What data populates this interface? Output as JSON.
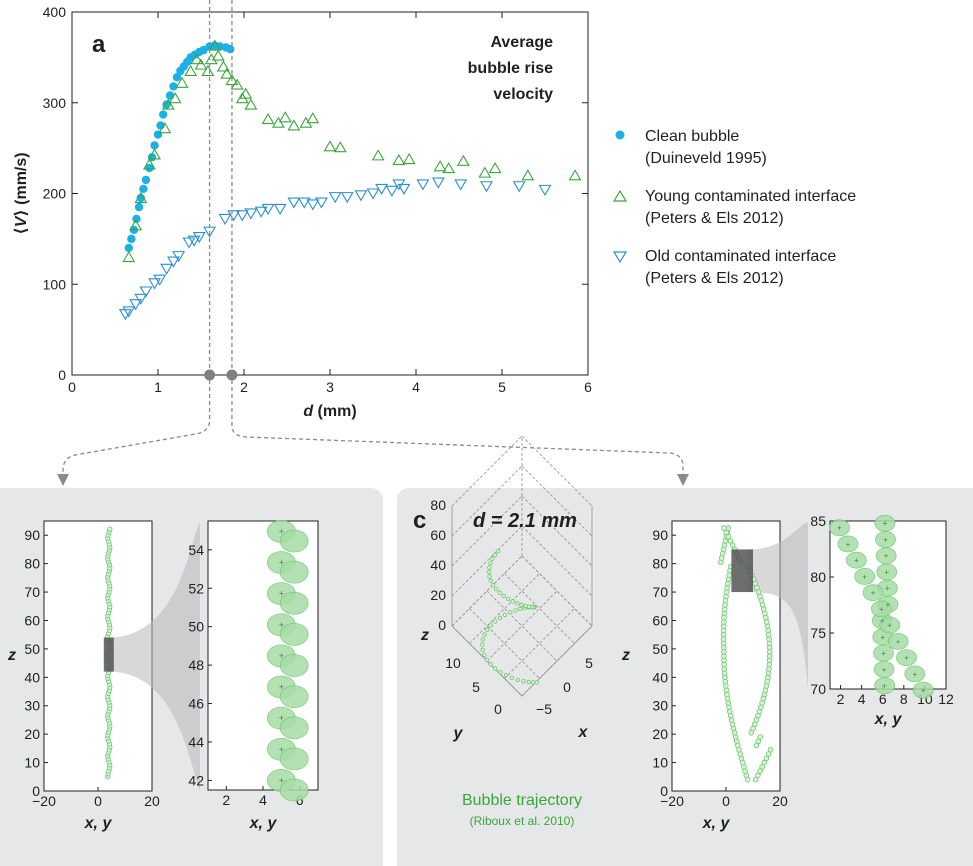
{
  "panels": {
    "a": "a",
    "c": "c"
  },
  "annotation": {
    "line1": "Average",
    "line2": "bubble rise",
    "line3": "velocity"
  },
  "legend": [
    {
      "line1": "Clean bubble",
      "line2": "(Duineveld 1995)"
    },
    {
      "line1": "Young contaminated interface",
      "line2": "(Peters & Els 2012)"
    },
    {
      "line1": "Old contaminated interface",
      "line2": "(Peters & Els 2012)"
    }
  ],
  "colors": {
    "clean": "#1ab0e8",
    "young": "#3aa63a",
    "old": "#2a8fd0",
    "bubble": "#6cc86c",
    "panel_bg": "#e6e7e8"
  },
  "chart_data": [
    {
      "type": "scatter",
      "title": "",
      "xlabel": "d (mm)",
      "ylabel": "⟨V⟩ (mm/s)",
      "xlim": [
        0,
        6
      ],
      "ylim": [
        0,
        400
      ],
      "xticks": [
        "0",
        "1",
        "2",
        "3",
        "4",
        "5",
        "6"
      ],
      "yticks": [
        "0",
        "100",
        "200",
        "300",
        "400"
      ],
      "marked_d": [
        1.6,
        1.86
      ],
      "series": [
        {
          "name": "Clean bubble (Duineveld 1995)",
          "marker": "circle",
          "x": [
            0.66,
            0.69,
            0.72,
            0.75,
            0.78,
            0.8,
            0.83,
            0.86,
            0.9,
            0.93,
            0.96,
            1.0,
            1.03,
            1.06,
            1.1,
            1.14,
            1.18,
            1.22,
            1.26,
            1.3,
            1.34,
            1.38,
            1.43,
            1.48,
            1.53,
            1.6,
            1.66,
            1.72,
            1.79,
            1.84
          ],
          "y": [
            140,
            150,
            160,
            172,
            185,
            195,
            205,
            215,
            228,
            240,
            253,
            265,
            275,
            287,
            298,
            308,
            318,
            328,
            335,
            340,
            345,
            350,
            353,
            356,
            358,
            362,
            363,
            362,
            361,
            359
          ]
        },
        {
          "name": "Young contaminated interface (Peters & Els 2012)",
          "marker": "triangle-up",
          "x": [
            0.66,
            0.74,
            0.8,
            0.9,
            0.96,
            1.08,
            1.12,
            1.2,
            1.28,
            1.38,
            1.45,
            1.5,
            1.58,
            1.62,
            1.66,
            1.7,
            1.76,
            1.8,
            1.86,
            1.92,
            1.98,
            2.02,
            2.08,
            2.28,
            2.4,
            2.48,
            2.58,
            2.72,
            2.8,
            3.0,
            3.12,
            3.56,
            3.8,
            3.92,
            4.28,
            4.38,
            4.55,
            4.8,
            4.92,
            5.3,
            5.85
          ],
          "y": [
            130,
            165,
            195,
            232,
            243,
            272,
            298,
            305,
            322,
            335,
            348,
            342,
            335,
            348,
            363,
            352,
            340,
            332,
            325,
            320,
            305,
            310,
            298,
            282,
            278,
            284,
            275,
            278,
            283,
            252,
            251,
            242,
            237,
            238,
            230,
            228,
            236,
            223,
            228,
            220,
            220
          ]
        },
        {
          "name": "Old contaminated interface (Peters & Els 2012)",
          "marker": "triangle-down",
          "x": [
            0.62,
            0.66,
            0.74,
            0.8,
            0.86,
            0.96,
            1.02,
            1.1,
            1.18,
            1.24,
            1.36,
            1.42,
            1.48,
            1.6,
            1.78,
            1.88,
            1.98,
            2.08,
            2.2,
            2.28,
            2.42,
            2.58,
            2.7,
            2.8,
            2.9,
            3.06,
            3.2,
            3.36,
            3.5,
            3.6,
            3.72,
            3.8,
            3.86,
            4.08,
            4.26,
            4.52,
            4.82,
            5.2,
            5.5
          ],
          "y": [
            67,
            70,
            78,
            84,
            92,
            101,
            105,
            117,
            125,
            131,
            146,
            148,
            152,
            158,
            172,
            176,
            176,
            178,
            180,
            183,
            183,
            190,
            190,
            188,
            190,
            196,
            196,
            198,
            200,
            205,
            203,
            210,
            205,
            210,
            212,
            210,
            208,
            208,
            204
          ]
        }
      ]
    },
    {
      "type": "scatter",
      "title": "",
      "xlabel": "x, y",
      "ylabel": "z",
      "xlim": [
        -20,
        20
      ],
      "ylim": [
        0,
        95
      ],
      "xticks": [
        "−20",
        "0",
        "20"
      ],
      "yticks": [
        "0",
        "10",
        "20",
        "30",
        "40",
        "50",
        "60",
        "70",
        "80",
        "90"
      ],
      "series": [
        {
          "name": "",
          "x_center": 4,
          "z_from": 5,
          "z_to": 93
        }
      ]
    },
    {
      "type": "scatter",
      "title": "",
      "xlabel": "x, y",
      "ylabel": "",
      "xlim": [
        1,
        7
      ],
      "ylim": [
        41.5,
        55.5
      ],
      "xticks": [
        "2",
        "4",
        "6"
      ],
      "yticks": [
        "42",
        "44",
        "46",
        "48",
        "50",
        "52",
        "54"
      ],
      "series": [
        {
          "name": "",
          "x": [
            5.0,
            5.6
          ],
          "z_from": 42,
          "z_to": 55
        }
      ]
    },
    {
      "type": "scatter",
      "title": "d = 2.1 mm",
      "xlabel": "x",
      "ylabel": "z",
      "zlim": [
        0,
        80
      ],
      "yaxis_label": "y",
      "zticks": [
        "0",
        "20",
        "40",
        "60",
        "80"
      ],
      "yticks": [
        "0",
        "5",
        "10"
      ],
      "xticks": [
        "−5",
        "0",
        "5"
      ],
      "caption": {
        "line1": "Bubble trajectory",
        "line2": "(Riboux et al. 2010)"
      }
    },
    {
      "type": "scatter",
      "title": "",
      "xlabel": "x, y",
      "ylabel": "z",
      "xlim": [
        -20,
        20
      ],
      "ylim": [
        0,
        95
      ],
      "xticks": [
        "−20",
        "0",
        "20"
      ],
      "yticks": [
        "0",
        "10",
        "20",
        "30",
        "40",
        "50",
        "60",
        "70",
        "80",
        "90"
      ]
    },
    {
      "type": "scatter",
      "title": "",
      "xlabel": "x, y",
      "ylabel": "",
      "xlim": [
        1,
        12
      ],
      "ylim": [
        70,
        85
      ],
      "xticks": [
        "2",
        "4",
        "6",
        "8",
        "10",
        "12"
      ],
      "yticks": [
        "70",
        "75",
        "80",
        "85"
      ]
    }
  ]
}
